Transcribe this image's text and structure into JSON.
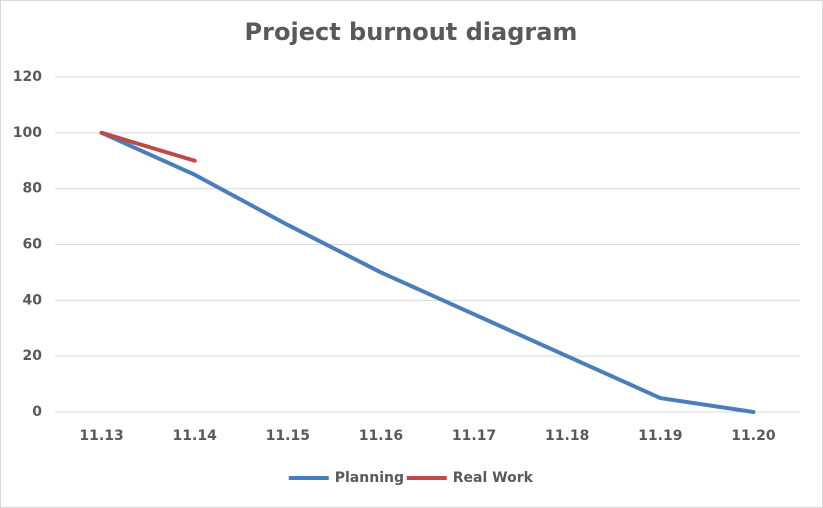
{
  "chart_data": {
    "type": "line",
    "title": "Project burnout diagram",
    "categories": [
      "11.13",
      "11.14",
      "11.15",
      "11.16",
      "11.17",
      "11.18",
      "11.19",
      "11.20"
    ],
    "series": [
      {
        "name": "Planning",
        "color": "#4a7ebb",
        "values": [
          100,
          85,
          67,
          50,
          35,
          20,
          5,
          0
        ]
      },
      {
        "name": "Real Work",
        "color": "#be4b48",
        "values": [
          100,
          90,
          null,
          null,
          null,
          null,
          null,
          null
        ]
      }
    ],
    "ylim": [
      0,
      120
    ],
    "yticks": [
      0,
      20,
      40,
      60,
      80,
      100,
      120
    ],
    "grid": true,
    "legend": "bottom"
  }
}
